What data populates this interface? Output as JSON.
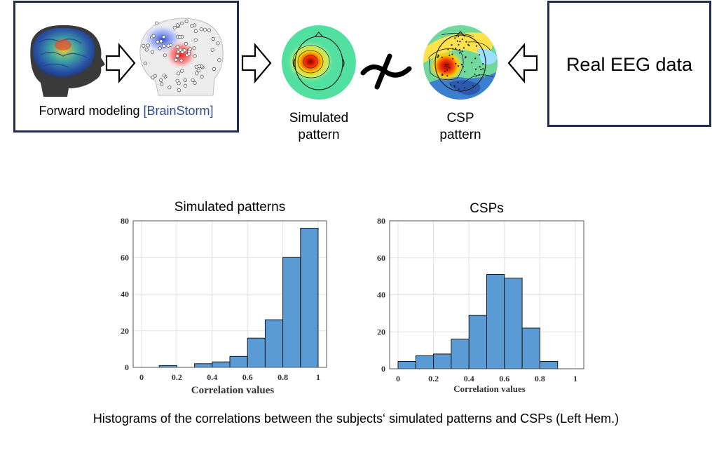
{
  "diagram": {
    "forward_label": "Forward modeling ",
    "forward_link": "[BrainStorm]",
    "simulated_label_line1": "Simulated",
    "simulated_label_line2": "pattern",
    "csp_label_line1": "CSP",
    "csp_label_line2": "pattern",
    "real_eeg_label": "Real EEG data",
    "colors": {
      "box_border": "#1f2d4e",
      "link": "#2e4f8a",
      "bar_fill": "#5b9bd5"
    }
  },
  "chart_data": [
    {
      "type": "bar",
      "title": "Simulated patterns",
      "xlabel": "Correlation values",
      "ylabel": "",
      "xlim": [
        0,
        1
      ],
      "ylim": [
        0,
        80
      ],
      "xticks": [
        "0",
        "0.2",
        "0.4",
        "0.6",
        "0.8",
        "1"
      ],
      "yticks": [
        "0",
        "20",
        "40",
        "60",
        "80"
      ],
      "bin_width": 0.1,
      "bin_starts": [
        0.1,
        0.2,
        0.3,
        0.4,
        0.5,
        0.6,
        0.7,
        0.8,
        0.9
      ],
      "values": [
        1,
        0,
        2,
        3,
        6,
        16,
        26,
        60,
        76
      ],
      "grid": true
    },
    {
      "type": "bar",
      "title": "CSPs",
      "xlabel": "Correlation values",
      "ylabel": "",
      "xlim": [
        0,
        1
      ],
      "ylim": [
        0,
        80
      ],
      "xticks": [
        "0",
        "0.2",
        "0.4",
        "0.6",
        "0.8",
        "1"
      ],
      "yticks": [
        "0",
        "20",
        "40",
        "60",
        "80"
      ],
      "bin_width": 0.1,
      "bin_starts": [
        0.0,
        0.1,
        0.2,
        0.3,
        0.4,
        0.5,
        0.6,
        0.7,
        0.8
      ],
      "values": [
        4,
        7,
        8,
        16,
        29,
        51,
        49,
        22,
        4
      ],
      "grid": true
    }
  ],
  "caption": "Histograms of the correlations between the subjects‘ simulated patterns and CSPs (Left Hem.)"
}
